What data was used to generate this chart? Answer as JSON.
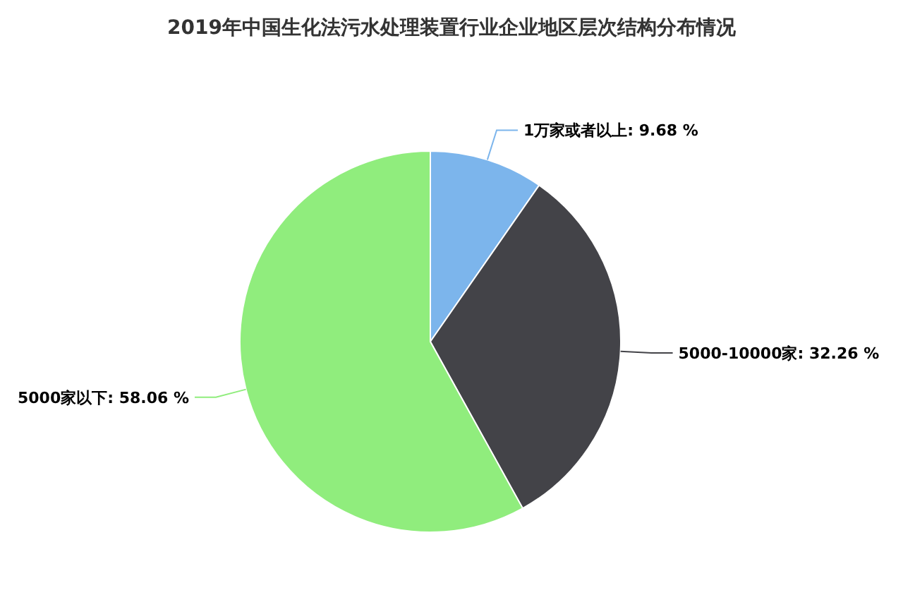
{
  "chart_data": {
    "type": "pie",
    "title": "2019年中国生化法污水处理装置行业企业地区层次结构分布情况",
    "categories": [
      "1万家或者以上",
      "5000-10000家",
      "5000家以下"
    ],
    "values": [
      9.68,
      32.26,
      58.06
    ],
    "value_labels": [
      ": 9.68 %",
      ": 32.26 %",
      ": 58.06 %"
    ],
    "colors": [
      "#7cb5ec",
      "#434348",
      "#90ed7d"
    ]
  }
}
